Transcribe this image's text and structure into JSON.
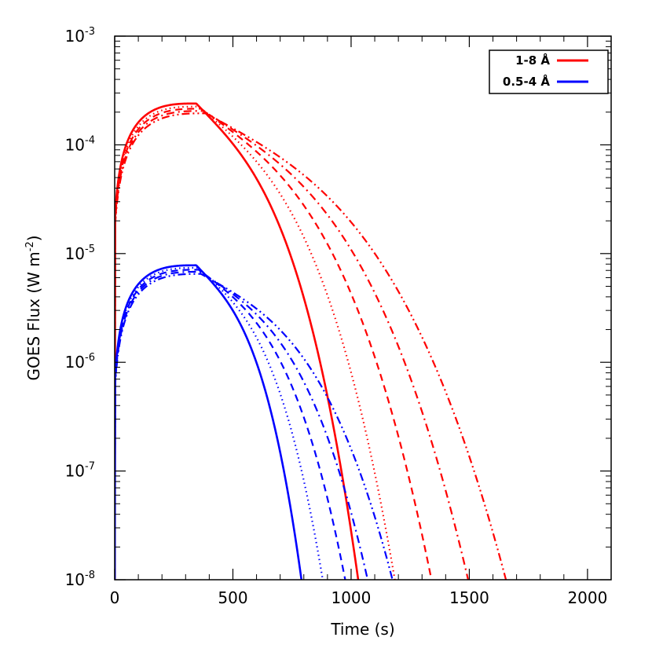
{
  "chart_data": {
    "type": "line",
    "xlabel": "Time (s)",
    "ylabel_main": "GOES Flux (W m",
    "ylabel_sup": "-2",
    "ylabel_close": ")",
    "xlim": [
      0,
      2100
    ],
    "ylim": [
      1e-08,
      0.001
    ],
    "y_scale": "log",
    "x_ticks": [
      {
        "value": 0,
        "label": "0"
      },
      {
        "value": 500,
        "label": "500"
      },
      {
        "value": 1000,
        "label": "1000"
      },
      {
        "value": 1500,
        "label": "1500"
      },
      {
        "value": 2000,
        "label": "2000"
      }
    ],
    "y_ticks": [
      {
        "value": 1e-08,
        "base": "10",
        "exp": "-8"
      },
      {
        "value": 1e-07,
        "base": "10",
        "exp": "-7"
      },
      {
        "value": 1e-06,
        "base": "10",
        "exp": "-6"
      },
      {
        "value": 1e-05,
        "base": "10",
        "exp": "-5"
      },
      {
        "value": 0.0001,
        "base": "10",
        "exp": "-4"
      },
      {
        "value": 0.001,
        "base": "10",
        "exp": "-3"
      }
    ],
    "legend": {
      "position": "top-right",
      "entries": [
        {
          "label": "1-8 Å",
          "color": "#ff0000"
        },
        {
          "label": "0.5-4 Å",
          "color": "#0000ff"
        }
      ]
    },
    "series": [
      {
        "channel": "1-8 Å",
        "color": "#ff0000",
        "style": "solid",
        "peak_t": 345,
        "peak": 0.00024,
        "end_t": 1030
      },
      {
        "channel": "1-8 Å",
        "color": "#ff0000",
        "style": "dotted",
        "peak_t": 355,
        "peak": 0.000225,
        "end_t": 1185
      },
      {
        "channel": "1-8 Å",
        "color": "#ff0000",
        "style": "dashed",
        "peak_t": 365,
        "peak": 0.000215,
        "end_t": 1340
      },
      {
        "channel": "1-8 Å",
        "color": "#ff0000",
        "style": "dashdot",
        "peak_t": 375,
        "peak": 0.000205,
        "end_t": 1495
      },
      {
        "channel": "1-8 Å",
        "color": "#ff0000",
        "style": "dashdotdot",
        "peak_t": 385,
        "peak": 0.000195,
        "end_t": 1655
      },
      {
        "channel": "0.5-4 Å",
        "color": "#0000ff",
        "style": "solid",
        "peak_t": 345,
        "peak": 7.8e-06,
        "end_t": 790
      },
      {
        "channel": "0.5-4 Å",
        "color": "#0000ff",
        "style": "dotted",
        "peak_t": 350,
        "peak": 7.4e-06,
        "end_t": 880
      },
      {
        "channel": "0.5-4 Å",
        "color": "#0000ff",
        "style": "dashed",
        "peak_t": 355,
        "peak": 7.1e-06,
        "end_t": 975
      },
      {
        "channel": "0.5-4 Å",
        "color": "#0000ff",
        "style": "dashdot",
        "peak_t": 360,
        "peak": 6.8e-06,
        "end_t": 1070
      },
      {
        "channel": "0.5-4 Å",
        "color": "#0000ff",
        "style": "dashdotdot",
        "peak_t": 365,
        "peak": 6.5e-06,
        "end_t": 1175
      }
    ]
  }
}
